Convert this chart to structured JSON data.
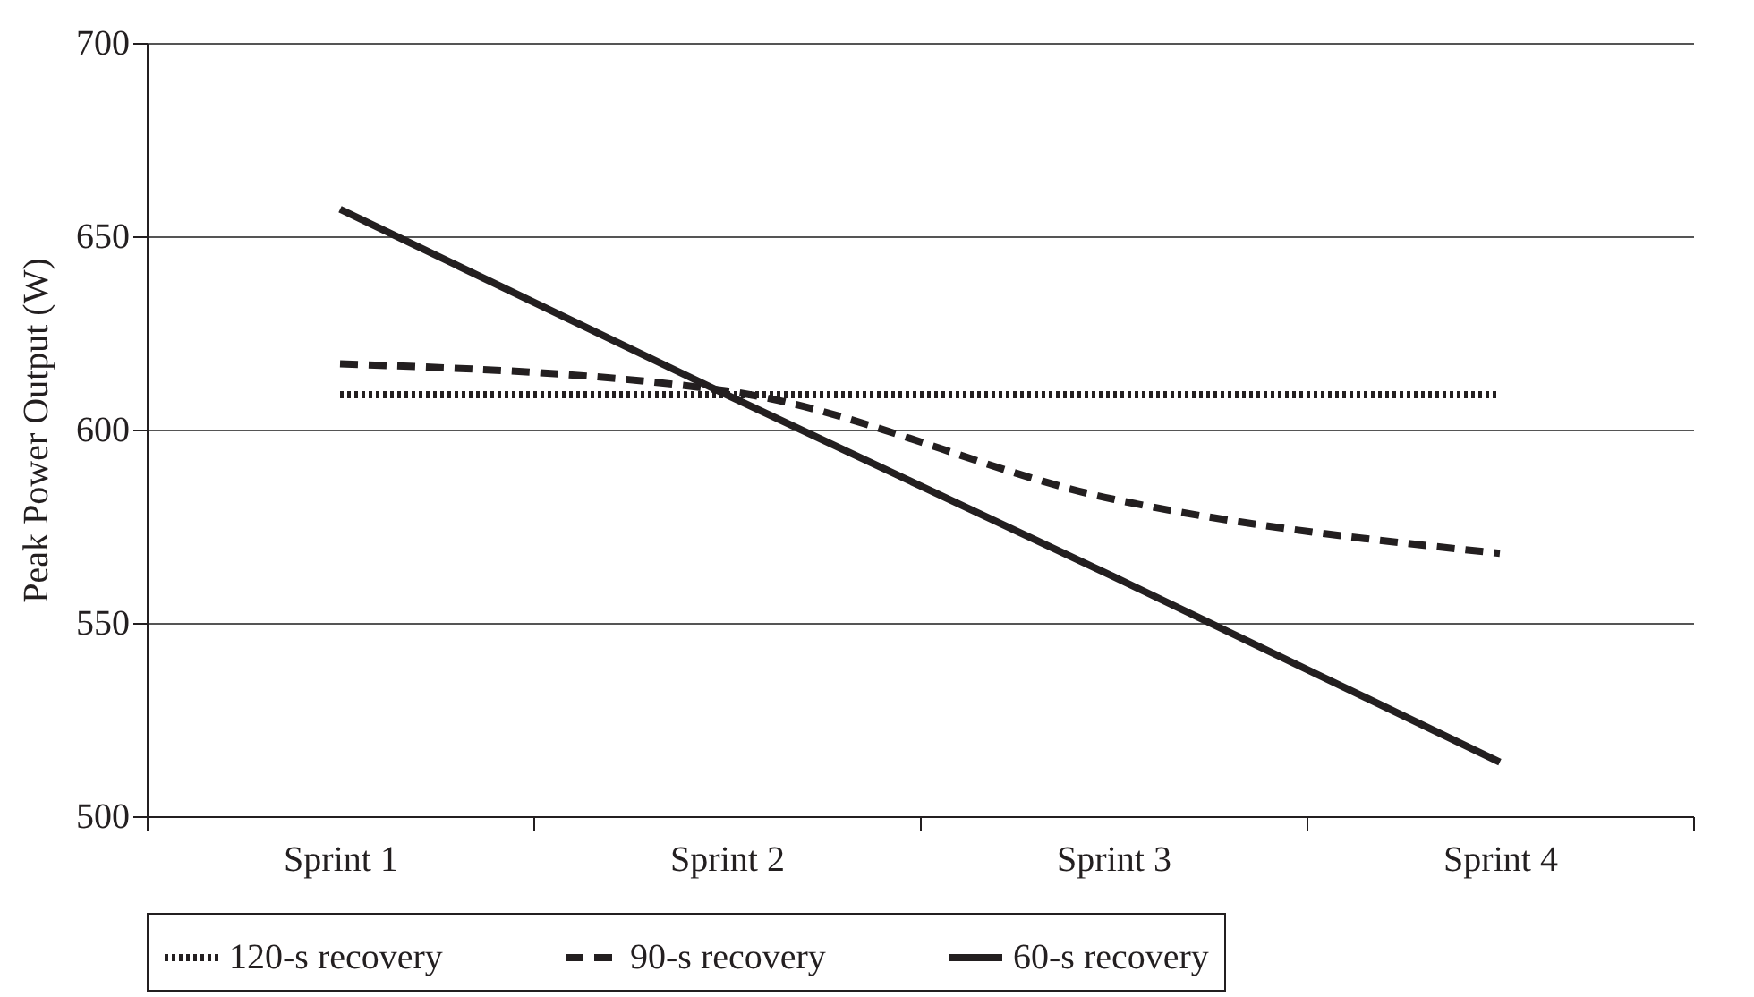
{
  "chart_data": {
    "type": "line",
    "ylabel": "Peak Power Output (W)",
    "categories": [
      "Sprint 1",
      "Sprint 2",
      "Sprint 3",
      "Sprint 4"
    ],
    "series": [
      {
        "name": "120-s recovery",
        "color": "#231f20",
        "line_style": "dotted",
        "values": [
          609,
          609,
          609,
          609
        ]
      },
      {
        "name": "90-s recovery",
        "color": "#231f20",
        "line_style": "dashed",
        "values": [
          617,
          610,
          582,
          568
        ]
      },
      {
        "name": "60-s recovery",
        "color": "#231f20",
        "line_style": "solid",
        "values": [
          657,
          609,
          562,
          514
        ]
      }
    ],
    "ylim": [
      500,
      700
    ],
    "yticks": [
      500,
      550,
      600,
      650,
      700
    ],
    "grid": "y",
    "legend": "bottom"
  }
}
